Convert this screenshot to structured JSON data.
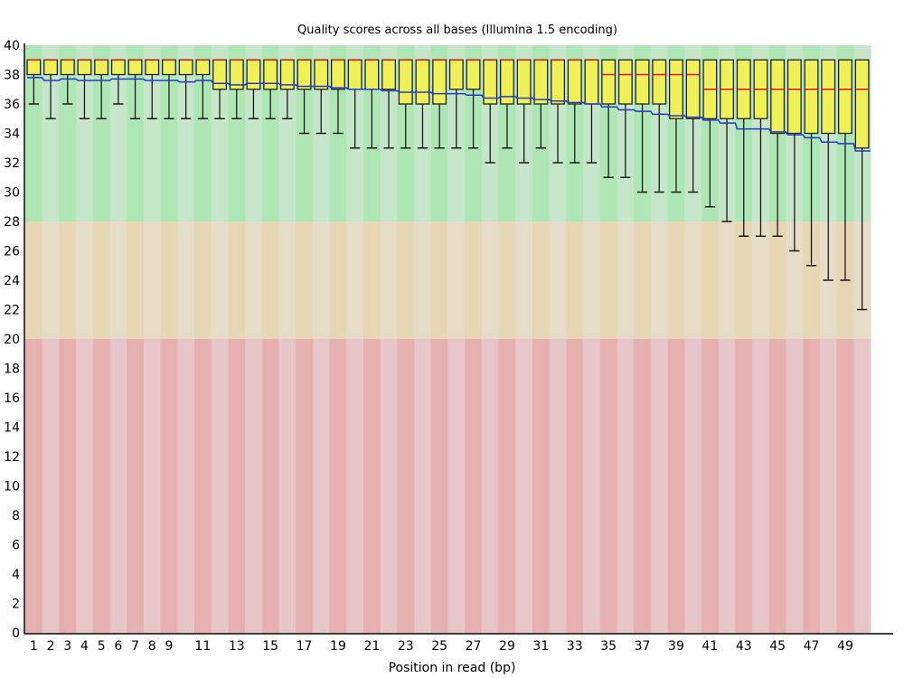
{
  "chart_data": {
    "type": "box",
    "title": "Quality scores across all bases (Illumina 1.5 encoding)",
    "xlabel": "Position in read (bp)",
    "ylabel": "",
    "ylim": [
      0,
      40
    ],
    "yticks": [
      "0",
      "2",
      "4",
      "6",
      "8",
      "10",
      "12",
      "14",
      "16",
      "18",
      "20",
      "22",
      "24",
      "26",
      "28",
      "30",
      "32",
      "34",
      "36",
      "38",
      "40"
    ],
    "xtick_labels": [
      "1",
      "2",
      "3",
      "4",
      "5",
      "6",
      "7",
      "8",
      "9",
      "11",
      "13",
      "15",
      "17",
      "19",
      "21",
      "23",
      "25",
      "27",
      "29",
      "31",
      "33",
      "35",
      "37",
      "39",
      "41",
      "43",
      "45",
      "47",
      "49"
    ],
    "xtick_positions": [
      1,
      2,
      3,
      4,
      5,
      6,
      7,
      8,
      9,
      11,
      13,
      15,
      17,
      19,
      21,
      23,
      25,
      27,
      29,
      31,
      33,
      35,
      37,
      39,
      41,
      43,
      45,
      47,
      49
    ],
    "bands": [
      {
        "name": "good",
        "from": 28,
        "to": 40,
        "colors": [
          "#afe6b5",
          "#c6e6c9"
        ]
      },
      {
        "name": "reasonable",
        "from": 20,
        "to": 28,
        "colors": [
          "#e6d6b4",
          "#e6dcc8"
        ]
      },
      {
        "name": "poor",
        "from": 0,
        "to": 20,
        "colors": [
          "#e6afb0",
          "#e6c6c8"
        ]
      }
    ],
    "colors": {
      "box": "#f0f05a",
      "median": "#e01010",
      "mean": "#1e3cc8",
      "whisker": "#1a1a1a"
    },
    "positions": [
      1,
      2,
      3,
      4,
      5,
      6,
      7,
      8,
      9,
      10,
      11,
      12,
      13,
      14,
      15,
      16,
      17,
      18,
      19,
      20,
      21,
      22,
      23,
      24,
      25,
      26,
      27,
      28,
      29,
      30,
      31,
      32,
      33,
      34,
      35,
      36,
      37,
      38,
      39,
      40,
      41,
      42,
      43,
      44,
      45,
      46,
      47,
      48,
      49,
      50
    ],
    "series": [
      {
        "name": "upper_whisker",
        "values": [
          39,
          39,
          39,
          39,
          39,
          39,
          39,
          39,
          39,
          39,
          39,
          39,
          39,
          39,
          39,
          39,
          39,
          39,
          39,
          39,
          39,
          39,
          39,
          39,
          39,
          39,
          39,
          39,
          39,
          39,
          39,
          39,
          39,
          39,
          39,
          39,
          39,
          39,
          39,
          39,
          39,
          39,
          39,
          39,
          39,
          39,
          39,
          39,
          39,
          39
        ]
      },
      {
        "name": "q3",
        "values": [
          39,
          39,
          39,
          39,
          39,
          39,
          39,
          39,
          39,
          39,
          39,
          39,
          39,
          39,
          39,
          39,
          39,
          39,
          39,
          39,
          39,
          39,
          39,
          39,
          39,
          39,
          39,
          39,
          39,
          39,
          39,
          39,
          39,
          39,
          39,
          39,
          39,
          39,
          39,
          39,
          39,
          39,
          39,
          39,
          39,
          39,
          39,
          39,
          39,
          39
        ]
      },
      {
        "name": "median",
        "values": [
          39,
          39,
          39,
          39,
          39,
          39,
          39,
          39,
          39,
          39,
          39,
          39,
          39,
          39,
          39,
          39,
          39,
          39,
          39,
          39,
          39,
          39,
          39,
          39,
          39,
          39,
          39,
          39,
          39,
          39,
          39,
          39,
          39,
          39,
          38,
          38,
          38,
          38,
          38,
          38,
          37,
          37,
          37,
          37,
          37,
          37,
          37,
          37,
          37,
          37
        ]
      },
      {
        "name": "q1",
        "values": [
          38,
          38,
          38,
          38,
          38,
          38,
          38,
          38,
          38,
          38,
          38,
          37,
          37,
          37,
          37,
          37,
          37,
          37,
          37,
          37,
          37,
          37,
          36,
          36,
          36,
          37,
          37,
          36,
          36,
          36,
          36,
          36,
          36,
          36,
          36,
          36,
          36,
          36,
          35,
          35,
          35,
          35,
          35,
          35,
          34,
          34,
          34,
          34,
          34,
          33
        ]
      },
      {
        "name": "lower_whisker",
        "values": [
          36,
          35,
          36,
          35,
          35,
          36,
          35,
          35,
          35,
          35,
          35,
          35,
          35,
          35,
          35,
          35,
          34,
          34,
          34,
          33,
          33,
          33,
          33,
          33,
          33,
          33,
          33,
          32,
          33,
          32,
          33,
          32,
          32,
          32,
          31,
          31,
          30,
          30,
          30,
          30,
          29,
          28,
          27,
          27,
          27,
          26,
          25,
          24,
          24,
          22
        ]
      },
      {
        "name": "mean",
        "values": [
          37.8,
          37.6,
          37.7,
          37.6,
          37.6,
          37.7,
          37.7,
          37.6,
          37.6,
          37.5,
          37.6,
          37.4,
          37.3,
          37.4,
          37.4,
          37.3,
          37.2,
          37.2,
          37.1,
          37.0,
          37.0,
          36.9,
          36.8,
          36.8,
          36.7,
          36.7,
          36.6,
          36.4,
          36.5,
          36.4,
          36.3,
          36.2,
          36.1,
          36.0,
          35.8,
          35.6,
          35.5,
          35.3,
          35.2,
          35.1,
          34.9,
          34.7,
          34.3,
          34.3,
          34.1,
          33.9,
          33.7,
          33.4,
          33.3,
          32.8
        ]
      }
    ]
  }
}
